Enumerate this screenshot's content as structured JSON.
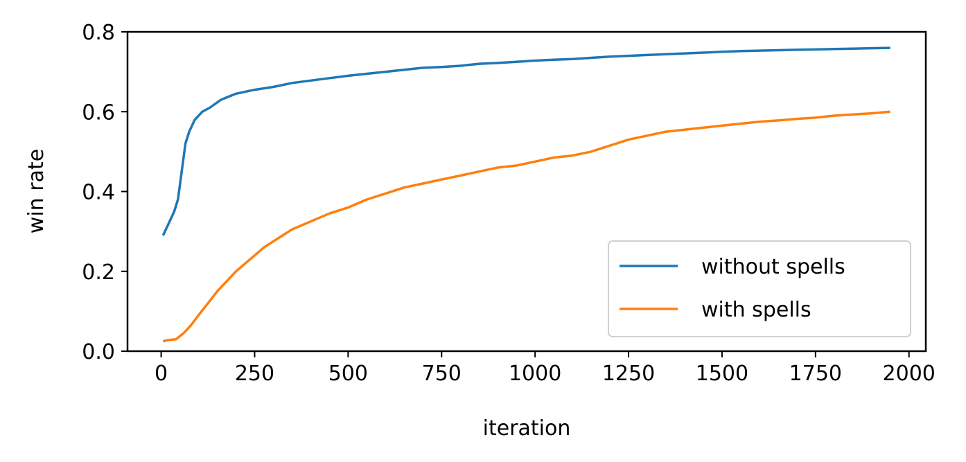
{
  "chart_data": {
    "type": "line",
    "title": "",
    "xlabel": "iteration",
    "ylabel": "win rate",
    "xlim": [
      -90,
      2045
    ],
    "ylim": [
      0.0,
      0.8
    ],
    "xticks": [
      0,
      250,
      500,
      750,
      1000,
      1250,
      1500,
      1750,
      2000
    ],
    "xtick_labels": [
      "0",
      "250",
      "500",
      "750",
      "1000",
      "1250",
      "1500",
      "1750",
      "2000"
    ],
    "yticks": [
      0.0,
      0.2,
      0.4,
      0.6,
      0.8
    ],
    "ytick_labels": [
      "0.0",
      "0.2",
      "0.4",
      "0.6",
      "0.8"
    ],
    "grid": false,
    "legend_position": "lower-right",
    "series": [
      {
        "name": "without spells",
        "color": "#1f77b4",
        "x": [
          5,
          20,
          35,
          45,
          55,
          65,
          75,
          90,
          110,
          130,
          160,
          200,
          250,
          300,
          350,
          400,
          450,
          500,
          550,
          600,
          650,
          700,
          750,
          800,
          850,
          900,
          950,
          1000,
          1050,
          1100,
          1150,
          1200,
          1250,
          1300,
          1350,
          1400,
          1450,
          1500,
          1550,
          1600,
          1650,
          1700,
          1750,
          1800,
          1850,
          1900,
          1950
        ],
        "y": [
          0.29,
          0.32,
          0.35,
          0.38,
          0.45,
          0.52,
          0.55,
          0.58,
          0.6,
          0.61,
          0.63,
          0.645,
          0.655,
          0.662,
          0.672,
          0.678,
          0.684,
          0.69,
          0.695,
          0.7,
          0.705,
          0.71,
          0.712,
          0.715,
          0.72,
          0.722,
          0.725,
          0.728,
          0.73,
          0.732,
          0.735,
          0.738,
          0.74,
          0.742,
          0.744,
          0.746,
          0.748,
          0.75,
          0.752,
          0.753,
          0.754,
          0.755,
          0.756,
          0.757,
          0.758,
          0.759,
          0.76
        ]
      },
      {
        "name": "with spells",
        "color": "#ff7f0e",
        "x": [
          5,
          20,
          40,
          60,
          80,
          100,
          125,
          150,
          175,
          200,
          225,
          250,
          275,
          300,
          325,
          350,
          375,
          400,
          450,
          500,
          550,
          600,
          650,
          700,
          750,
          800,
          850,
          900,
          950,
          1000,
          1050,
          1100,
          1150,
          1200,
          1250,
          1300,
          1350,
          1400,
          1450,
          1500,
          1550,
          1600,
          1650,
          1700,
          1750,
          1800,
          1850,
          1900,
          1950
        ],
        "y": [
          0.025,
          0.028,
          0.03,
          0.045,
          0.065,
          0.09,
          0.12,
          0.15,
          0.175,
          0.2,
          0.22,
          0.24,
          0.26,
          0.275,
          0.29,
          0.305,
          0.315,
          0.325,
          0.345,
          0.36,
          0.38,
          0.395,
          0.41,
          0.42,
          0.43,
          0.44,
          0.45,
          0.46,
          0.465,
          0.475,
          0.485,
          0.49,
          0.5,
          0.515,
          0.53,
          0.54,
          0.55,
          0.555,
          0.56,
          0.565,
          0.57,
          0.575,
          0.578,
          0.582,
          0.585,
          0.59,
          0.593,
          0.596,
          0.6
        ]
      }
    ]
  }
}
